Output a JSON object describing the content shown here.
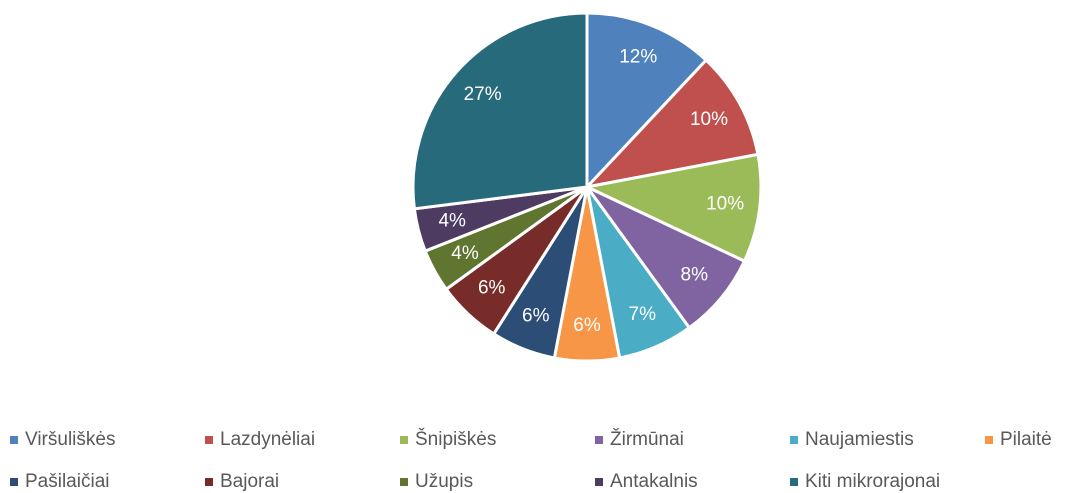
{
  "chart_data": {
    "type": "pie",
    "categories": [
      "Viršuliškės",
      "Lazdynėliai",
      "Šnipiškės",
      "Žirmūnai",
      "Naujamiestis",
      "Pilaitė",
      "Pašilaičiai",
      "Bajorai",
      "Užupis",
      "Antakalnis",
      "Kiti mikrorajonai"
    ],
    "values": [
      12,
      10,
      10,
      8,
      7,
      6,
      6,
      6,
      4,
      4,
      27
    ],
    "value_labels": [
      "12%",
      "10%",
      "10%",
      "8%",
      "7%",
      "6%",
      "6%",
      "6%",
      "4%",
      "4%",
      "27%"
    ],
    "colors": [
      "#4f81bd",
      "#c0504d",
      "#9bbb59",
      "#8064a2",
      "#4bacc6",
      "#f79646",
      "#2c4d75",
      "#772c2a",
      "#5f7530",
      "#4d3b62",
      "#276a7c"
    ],
    "legend": "bottom"
  }
}
